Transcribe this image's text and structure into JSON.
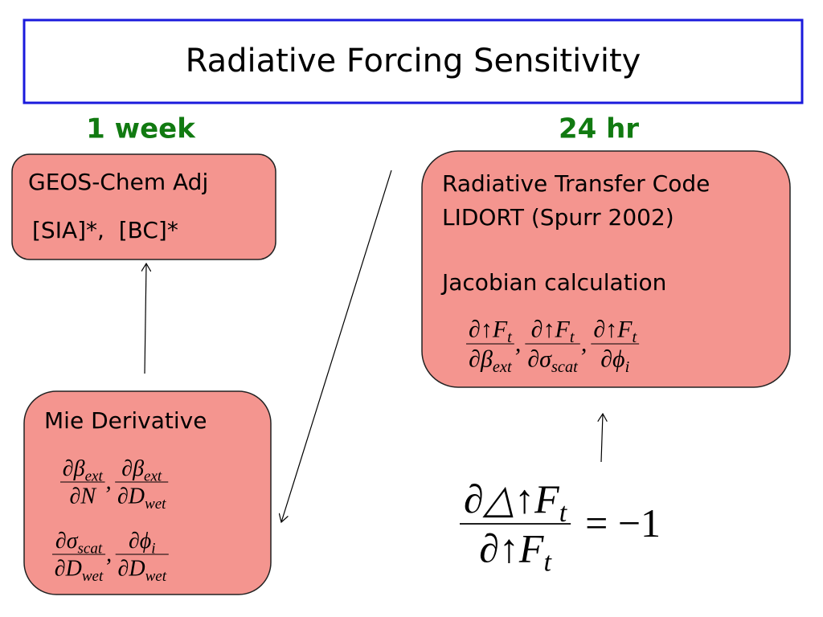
{
  "title": "Radiative Forcing Sensitivity",
  "nodes": [
    {
      "heading": "1 week",
      "lines": [
        "GEOS-Chem Adj",
        "[SIA]*,  [BC]*"
      ]
    },
    {
      "heading": "24 hr",
      "lines": [
        "Radiative Transfer Code",
        "LIDORT (Spurr 2002)",
        "Jacobian calculation"
      ],
      "fractions": [
        {
          "num": [
            "∂↑F",
            "t"
          ],
          "den": [
            "∂β",
            "ext"
          ]
        },
        {
          "num": [
            "∂↑F",
            "t"
          ],
          "den": [
            "∂σ",
            "scat"
          ]
        },
        {
          "num": [
            "∂↑F",
            "t"
          ],
          "den": [
            "∂ϕ",
            "i"
          ]
        }
      ]
    },
    {
      "lines": [
        "Mie Derivative"
      ],
      "fractions": [
        {
          "num": [
            "∂β",
            "ext"
          ],
          "den": [
            "∂N",
            ""
          ]
        },
        {
          "num": [
            "∂β",
            "ext"
          ],
          "den": [
            "∂D",
            "wet"
          ]
        },
        {
          "num": [
            "∂σ",
            "scat"
          ],
          "den": [
            "∂D",
            "wet"
          ]
        },
        {
          "num": [
            "∂ϕ",
            "i"
          ],
          "den": [
            "∂D",
            "wet"
          ]
        }
      ]
    }
  ],
  "separator": ",",
  "equation": {
    "num": [
      "∂△↑F",
      "t"
    ],
    "den": [
      "∂↑F",
      "t"
    ],
    "rhs": "= −1"
  }
}
